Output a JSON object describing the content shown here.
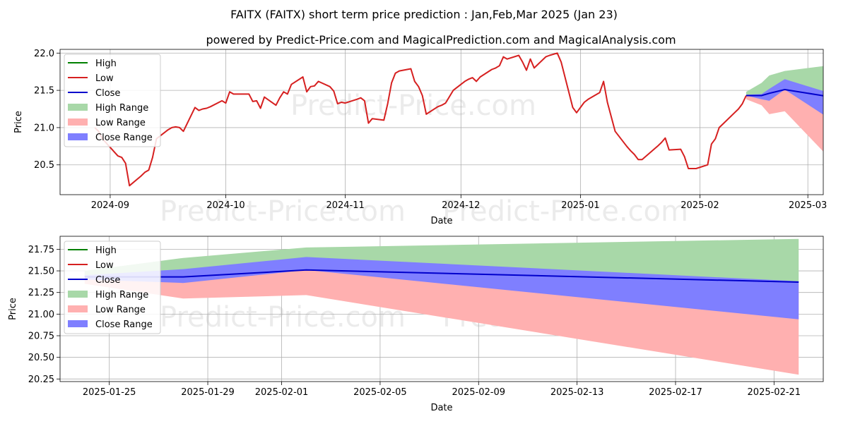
{
  "titles": {
    "line1": "FAITX (FAITX) short term price prediction : Jan,Feb,Mar 2025 (Jan 23)",
    "line2": "powered by Predict-Price.com and MagicalPrediction.com and MagicalAnalysis.com"
  },
  "watermark": "Predict-Price.com",
  "legend": {
    "entries": [
      {
        "label": "High",
        "kind": "line",
        "color": "#008000"
      },
      {
        "label": "Low",
        "kind": "line",
        "color": "#d62020"
      },
      {
        "label": "Close",
        "kind": "line",
        "color": "#0000cc"
      },
      {
        "label": "High Range",
        "kind": "patch",
        "color": "#a8d8a8"
      },
      {
        "label": "Low Range",
        "kind": "patch",
        "color": "#ffb0b0"
      },
      {
        "label": "Close Range",
        "kind": "patch",
        "color": "#7f7fff"
      }
    ]
  },
  "chart_data": [
    {
      "type": "line",
      "xlabel": "Date",
      "ylabel": "Price",
      "xlim": [
        "2024-08-19",
        "2025-03-05"
      ],
      "ylim": [
        20.1,
        22.05
      ],
      "xticks": [
        {
          "date": "2024-09-01",
          "label": "2024-09"
        },
        {
          "date": "2024-10-01",
          "label": "2024-10"
        },
        {
          "date": "2024-11-01",
          "label": "2024-11"
        },
        {
          "date": "2024-12-01",
          "label": "2024-12"
        },
        {
          "date": "2025-01-01",
          "label": "2025-01"
        },
        {
          "date": "2025-02-01",
          "label": "2025-02"
        },
        {
          "date": "2025-03-01",
          "label": "2025-03"
        }
      ],
      "yticks": [
        20.5,
        21.0,
        21.5,
        22.0
      ],
      "ytick_labels": [
        "20.5",
        "21.0",
        "21.5",
        "22.0"
      ],
      "grid": true,
      "legend_position": "upper-left",
      "series": [
        {
          "name": "Low",
          "color": "#d62020",
          "points": [
            [
              "2024-08-28",
              21.0
            ],
            [
              "2024-08-29",
              20.95
            ],
            [
              "2024-08-30",
              20.85
            ],
            [
              "2024-09-03",
              20.62
            ],
            [
              "2024-09-04",
              20.6
            ],
            [
              "2024-09-05",
              20.52
            ],
            [
              "2024-09-06",
              20.22
            ],
            [
              "2024-09-09",
              20.35
            ],
            [
              "2024-09-10",
              20.4
            ],
            [
              "2024-09-11",
              20.43
            ],
            [
              "2024-09-12",
              20.6
            ],
            [
              "2024-09-13",
              20.85
            ],
            [
              "2024-09-16",
              20.97
            ],
            [
              "2024-09-17",
              21.0
            ],
            [
              "2024-09-18",
              21.01
            ],
            [
              "2024-09-19",
              21.0
            ],
            [
              "2024-09-20",
              20.95
            ],
            [
              "2024-09-23",
              21.27
            ],
            [
              "2024-09-24",
              21.23
            ],
            [
              "2024-09-25",
              21.25
            ],
            [
              "2024-09-26",
              21.26
            ],
            [
              "2024-09-27",
              21.28
            ],
            [
              "2024-09-30",
              21.36
            ],
            [
              "2024-10-01",
              21.33
            ],
            [
              "2024-10-02",
              21.48
            ],
            [
              "2024-10-03",
              21.45
            ],
            [
              "2024-10-04",
              21.45
            ],
            [
              "2024-10-07",
              21.45
            ],
            [
              "2024-10-08",
              21.35
            ],
            [
              "2024-10-09",
              21.36
            ],
            [
              "2024-10-10",
              21.26
            ],
            [
              "2024-10-11",
              21.41
            ],
            [
              "2024-10-14",
              21.3
            ],
            [
              "2024-10-15",
              21.4
            ],
            [
              "2024-10-16",
              21.48
            ],
            [
              "2024-10-17",
              21.45
            ],
            [
              "2024-10-18",
              21.58
            ],
            [
              "2024-10-21",
              21.68
            ],
            [
              "2024-10-22",
              21.48
            ],
            [
              "2024-10-23",
              21.55
            ],
            [
              "2024-10-24",
              21.56
            ],
            [
              "2024-10-25",
              21.62
            ],
            [
              "2024-10-28",
              21.55
            ],
            [
              "2024-10-29",
              21.49
            ],
            [
              "2024-10-30",
              21.32
            ],
            [
              "2024-10-31",
              21.34
            ],
            [
              "2024-11-01",
              21.33
            ],
            [
              "2024-11-04",
              21.38
            ],
            [
              "2024-11-05",
              21.4
            ],
            [
              "2024-11-06",
              21.36
            ],
            [
              "2024-11-07",
              21.06
            ],
            [
              "2024-11-08",
              21.12
            ],
            [
              "2024-11-11",
              21.1
            ],
            [
              "2024-11-12",
              21.32
            ],
            [
              "2024-11-13",
              21.6
            ],
            [
              "2024-11-14",
              21.73
            ],
            [
              "2024-11-15",
              21.76
            ],
            [
              "2024-11-18",
              21.79
            ],
            [
              "2024-11-19",
              21.62
            ],
            [
              "2024-11-20",
              21.55
            ],
            [
              "2024-11-21",
              21.43
            ],
            [
              "2024-11-22",
              21.18
            ],
            [
              "2024-11-25",
              21.28
            ],
            [
              "2024-11-26",
              21.3
            ],
            [
              "2024-11-27",
              21.33
            ],
            [
              "2024-11-29",
              21.5
            ],
            [
              "2024-12-02",
              21.62
            ],
            [
              "2024-12-03",
              21.65
            ],
            [
              "2024-12-04",
              21.67
            ],
            [
              "2024-12-05",
              21.62
            ],
            [
              "2024-12-06",
              21.68
            ],
            [
              "2024-12-09",
              21.78
            ],
            [
              "2024-12-10",
              21.8
            ],
            [
              "2024-12-11",
              21.83
            ],
            [
              "2024-12-12",
              21.95
            ],
            [
              "2024-12-13",
              21.92
            ],
            [
              "2024-12-16",
              21.97
            ],
            [
              "2024-12-17",
              21.88
            ],
            [
              "2024-12-18",
              21.77
            ],
            [
              "2024-12-19",
              21.92
            ],
            [
              "2024-12-20",
              21.8
            ],
            [
              "2024-12-23",
              21.95
            ],
            [
              "2024-12-24",
              21.97
            ],
            [
              "2024-12-26",
              22.0
            ],
            [
              "2024-12-27",
              21.88
            ],
            [
              "2024-12-30",
              21.27
            ],
            [
              "2024-12-31",
              21.2
            ],
            [
              "2025-01-02",
              21.34
            ],
            [
              "2025-01-03",
              21.38
            ],
            [
              "2025-01-06",
              21.47
            ],
            [
              "2025-01-07",
              21.62
            ],
            [
              "2025-01-08",
              21.34
            ],
            [
              "2025-01-10",
              20.95
            ],
            [
              "2025-01-13",
              20.75
            ],
            [
              "2025-01-14",
              20.69
            ],
            [
              "2025-01-15",
              20.64
            ],
            [
              "2025-01-16",
              20.57
            ],
            [
              "2025-01-17",
              20.57
            ],
            [
              "2025-01-21",
              20.75
            ],
            [
              "2025-01-22",
              20.8
            ],
            [
              "2025-01-23",
              20.86
            ],
            [
              "2025-01-24",
              20.7
            ],
            [
              "2025-01-27",
              20.71
            ],
            [
              "2025-01-28",
              20.61
            ],
            [
              "2025-01-29",
              20.45
            ],
            [
              "2025-01-30",
              20.45
            ],
            [
              "2025-01-31",
              20.45
            ],
            [
              "2025-02-03",
              20.5
            ],
            [
              "2025-02-04",
              20.78
            ],
            [
              "2025-02-05",
              20.85
            ],
            [
              "2025-02-06",
              21.0
            ],
            [
              "2025-02-07",
              21.05
            ],
            [
              "2025-02-10",
              21.2
            ],
            [
              "2025-02-11",
              21.25
            ],
            [
              "2025-02-12",
              21.32
            ],
            [
              "2025-02-13",
              21.43
            ]
          ]
        }
      ],
      "forecast": {
        "x": [
          "2025-02-13",
          "2025-02-17",
          "2025-02-19",
          "2025-02-23",
          "2025-03-12"
        ],
        "close": [
          21.43,
          21.43,
          21.46,
          21.51,
          21.37
        ],
        "high_range": [
          [
            21.43,
            21.48
          ],
          [
            21.43,
            21.6
          ],
          [
            21.46,
            21.7
          ],
          [
            21.51,
            21.76
          ],
          [
            21.37,
            21.87
          ]
        ],
        "low_range": [
          [
            21.38,
            21.43
          ],
          [
            21.3,
            21.43
          ],
          [
            21.18,
            21.46
          ],
          [
            21.22,
            21.51
          ],
          [
            20.3,
            21.37
          ]
        ],
        "close_range": [
          [
            21.43,
            21.44
          ],
          [
            21.38,
            21.45
          ],
          [
            21.36,
            21.52
          ],
          [
            21.51,
            21.65
          ],
          [
            20.94,
            21.38
          ]
        ]
      }
    },
    {
      "type": "area",
      "xlabel": "Date",
      "ylabel": "Price",
      "xlim": [
        "2025-01-23",
        "2025-02-23"
      ],
      "ylim": [
        20.22,
        21.9
      ],
      "xticks": [
        {
          "date": "2025-01-25",
          "label": "2025-01-25"
        },
        {
          "date": "2025-01-29",
          "label": "2025-01-29"
        },
        {
          "date": "2025-02-01",
          "label": "2025-02-01"
        },
        {
          "date": "2025-02-05",
          "label": "2025-02-05"
        },
        {
          "date": "2025-02-09",
          "label": "2025-02-09"
        },
        {
          "date": "2025-02-13",
          "label": "2025-02-13"
        },
        {
          "date": "2025-02-17",
          "label": "2025-02-17"
        },
        {
          "date": "2025-02-21",
          "label": "2025-02-21"
        }
      ],
      "yticks": [
        20.25,
        20.5,
        20.75,
        21.0,
        21.25,
        21.5,
        21.75
      ],
      "ytick_labels": [
        "20.25",
        "20.50",
        "20.75",
        "21.00",
        "21.25",
        "21.50",
        "21.75"
      ],
      "grid": true,
      "legend_position": "upper-left",
      "forecast": {
        "x": [
          "2025-01-24",
          "2025-01-28",
          "2025-02-02",
          "2025-02-22"
        ],
        "close": [
          21.43,
          21.43,
          21.51,
          21.37
        ],
        "high_range": [
          [
            21.43,
            21.5
          ],
          [
            21.43,
            21.65
          ],
          [
            21.51,
            21.77
          ],
          [
            21.37,
            21.87
          ]
        ],
        "low_range": [
          [
            21.35,
            21.43
          ],
          [
            21.18,
            21.43
          ],
          [
            21.22,
            21.51
          ],
          [
            20.3,
            21.37
          ]
        ],
        "close_range": [
          [
            21.4,
            21.45
          ],
          [
            21.36,
            21.52
          ],
          [
            21.51,
            21.66
          ],
          [
            20.94,
            21.38
          ]
        ]
      }
    }
  ]
}
